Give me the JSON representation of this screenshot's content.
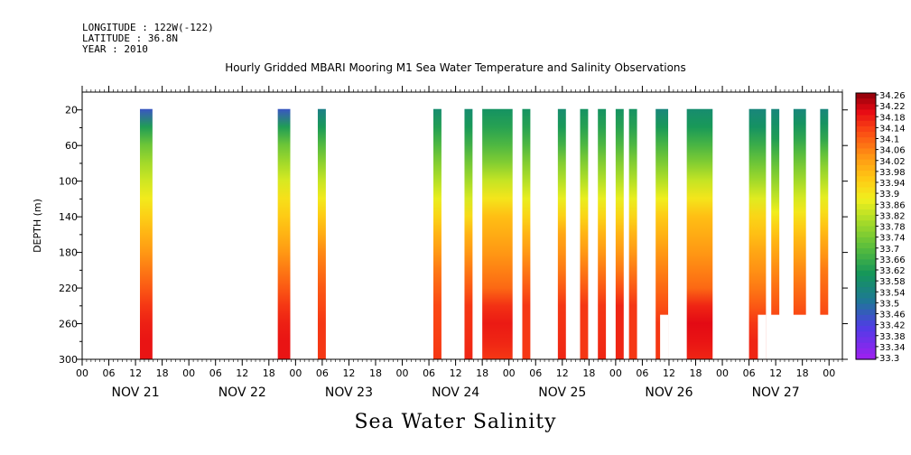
{
  "header": {
    "longitude": "LONGITUDE : 122W(-122)",
    "latitude": "LATITUDE : 36.8N",
    "year": "YEAR : 2010",
    "title": "Hourly Gridded MBARI Mooring M1 Sea Water Temperature and Salinity Observations",
    "footer": "Sea Water Salinity"
  },
  "chart_data": {
    "type": "heatmap",
    "title": "Hourly Gridded MBARI Mooring M1 Sea Water Temperature and Salinity Observations",
    "subtitle": "Sea Water Salinity",
    "ylabel": "DEPTH (m)",
    "xlabel": "",
    "y_axis": {
      "range": [
        300,
        0
      ],
      "inverted": true,
      "ticks": [
        20,
        60,
        100,
        140,
        180,
        220,
        260,
        300
      ]
    },
    "x_axis": {
      "range_hours": [
        0,
        171
      ],
      "hour_ticks": [
        "00",
        "06",
        "12",
        "18",
        "00",
        "06",
        "12",
        "18",
        "00",
        "06",
        "12",
        "18",
        "00",
        "06",
        "12",
        "18",
        "00",
        "06",
        "12",
        "18",
        "00",
        "06",
        "12",
        "18",
        "00",
        "06",
        "12",
        "18",
        "00"
      ],
      "day_labels": [
        "NOV 21",
        "NOV 22",
        "NOV 23",
        "NOV 24",
        "NOV 25",
        "NOV 26",
        "NOV 27"
      ]
    },
    "colorbar": {
      "labels": [
        "34.26",
        "34.22",
        "34.18",
        "34.14",
        "34.1",
        "34.06",
        "34.02",
        "33.98",
        "33.94",
        "33.9",
        "33.86",
        "33.82",
        "33.78",
        "33.74",
        "33.7",
        "33.66",
        "33.62",
        "33.58",
        "33.54",
        "33.5",
        "33.46",
        "33.42",
        "33.38",
        "33.34",
        "33.3"
      ],
      "min": 33.3,
      "max": 34.28
    },
    "observations": [
      {
        "start_hour": 13,
        "end_hour": 15,
        "max_depth": 300,
        "profile": [
          [
            20,
            33.46
          ],
          [
            30,
            33.56
          ],
          [
            50,
            33.7
          ],
          [
            80,
            33.8
          ],
          [
            120,
            33.9
          ],
          [
            160,
            34.0
          ],
          [
            200,
            34.08
          ],
          [
            240,
            34.16
          ],
          [
            270,
            34.2
          ],
          [
            300,
            34.2
          ]
        ]
      },
      {
        "start_hour": 44,
        "end_hour": 46,
        "max_depth": 300,
        "profile": [
          [
            20,
            33.46
          ],
          [
            30,
            33.56
          ],
          [
            50,
            33.7
          ],
          [
            80,
            33.8
          ],
          [
            120,
            33.92
          ],
          [
            160,
            34.0
          ],
          [
            200,
            34.08
          ],
          [
            240,
            34.16
          ],
          [
            270,
            34.2
          ],
          [
            300,
            34.2
          ]
        ]
      },
      {
        "start_hour": 53,
        "end_hour": 54,
        "max_depth": 300,
        "profile": [
          [
            20,
            33.54
          ],
          [
            40,
            33.62
          ],
          [
            70,
            33.74
          ],
          [
            100,
            33.84
          ],
          [
            140,
            33.96
          ],
          [
            180,
            34.06
          ],
          [
            220,
            34.12
          ],
          [
            260,
            34.16
          ],
          [
            300,
            34.16
          ]
        ]
      },
      {
        "start_hour": 79,
        "end_hour": 80,
        "max_depth": 300,
        "profile": [
          [
            20,
            33.58
          ],
          [
            50,
            33.66
          ],
          [
            80,
            33.76
          ],
          [
            120,
            33.88
          ],
          [
            160,
            34.0
          ],
          [
            200,
            34.08
          ],
          [
            240,
            34.14
          ],
          [
            300,
            34.16
          ]
        ]
      },
      {
        "start_hour": 86,
        "end_hour": 87,
        "max_depth": 300,
        "profile": [
          [
            20,
            33.58
          ],
          [
            50,
            33.64
          ],
          [
            80,
            33.74
          ],
          [
            120,
            33.86
          ],
          [
            160,
            34.0
          ],
          [
            200,
            34.08
          ],
          [
            240,
            34.16
          ],
          [
            300,
            34.18
          ]
        ]
      },
      {
        "start_hour": 90,
        "end_hour": 96,
        "max_depth": 300,
        "profile": [
          [
            20,
            33.6
          ],
          [
            40,
            33.64
          ],
          [
            70,
            33.72
          ],
          [
            100,
            33.84
          ],
          [
            140,
            33.98
          ],
          [
            180,
            34.04
          ],
          [
            220,
            34.1
          ],
          [
            250,
            34.2
          ],
          [
            280,
            34.18
          ],
          [
            300,
            34.16
          ]
        ]
      },
      {
        "start_hour": 99,
        "end_hour": 100,
        "max_depth": 300,
        "profile": [
          [
            20,
            33.6
          ],
          [
            50,
            33.66
          ],
          [
            80,
            33.76
          ],
          [
            120,
            33.88
          ],
          [
            160,
            34.0
          ],
          [
            200,
            34.08
          ],
          [
            240,
            34.16
          ],
          [
            300,
            34.16
          ]
        ]
      },
      {
        "start_hour": 107,
        "end_hour": 108,
        "max_depth": 300,
        "profile": [
          [
            20,
            33.58
          ],
          [
            50,
            33.64
          ],
          [
            80,
            33.76
          ],
          [
            120,
            33.88
          ],
          [
            160,
            34.02
          ],
          [
            200,
            34.08
          ],
          [
            240,
            34.16
          ],
          [
            300,
            34.18
          ]
        ]
      },
      {
        "start_hour": 112,
        "end_hour": 113,
        "max_depth": 300,
        "profile": [
          [
            20,
            33.6
          ],
          [
            50,
            33.66
          ],
          [
            80,
            33.76
          ],
          [
            120,
            33.88
          ],
          [
            160,
            34.0
          ],
          [
            200,
            34.08
          ],
          [
            240,
            34.16
          ],
          [
            300,
            34.16
          ]
        ]
      },
      {
        "start_hour": 116,
        "end_hour": 117,
        "max_depth": 300,
        "profile": [
          [
            20,
            33.6
          ],
          [
            50,
            33.66
          ],
          [
            80,
            33.76
          ],
          [
            120,
            33.88
          ],
          [
            160,
            34.0
          ],
          [
            200,
            34.08
          ],
          [
            240,
            34.16
          ],
          [
            300,
            34.18
          ]
        ]
      },
      {
        "start_hour": 120,
        "end_hour": 121,
        "max_depth": 300,
        "profile": [
          [
            20,
            33.6
          ],
          [
            50,
            33.66
          ],
          [
            80,
            33.76
          ],
          [
            120,
            33.88
          ],
          [
            160,
            34.0
          ],
          [
            200,
            34.08
          ],
          [
            240,
            34.18
          ],
          [
            300,
            34.18
          ]
        ]
      },
      {
        "start_hour": 123,
        "end_hour": 124,
        "max_depth": 300,
        "profile": [
          [
            20,
            33.6
          ],
          [
            50,
            33.66
          ],
          [
            80,
            33.76
          ],
          [
            120,
            33.88
          ],
          [
            160,
            34.0
          ],
          [
            200,
            34.08
          ],
          [
            240,
            34.16
          ],
          [
            300,
            34.16
          ]
        ]
      },
      {
        "start_hour": 129,
        "end_hour": 131,
        "max_depth": 300,
        "profile": [
          [
            20,
            33.56
          ],
          [
            40,
            33.62
          ],
          [
            70,
            33.72
          ],
          [
            100,
            33.82
          ],
          [
            140,
            33.96
          ],
          [
            180,
            34.04
          ],
          [
            220,
            34.1
          ],
          [
            260,
            34.16
          ],
          [
            300,
            34.16
          ]
        ],
        "cut_depth": 250,
        "cut_from_hour": 130
      },
      {
        "start_hour": 136,
        "end_hour": 141,
        "max_depth": 300,
        "profile": [
          [
            20,
            33.58
          ],
          [
            40,
            33.62
          ],
          [
            70,
            33.72
          ],
          [
            100,
            33.84
          ],
          [
            140,
            33.98
          ],
          [
            180,
            34.04
          ],
          [
            220,
            34.1
          ],
          [
            250,
            34.22
          ],
          [
            280,
            34.2
          ],
          [
            300,
            34.18
          ]
        ]
      },
      {
        "start_hour": 150,
        "end_hour": 153,
        "max_depth": 300,
        "profile": [
          [
            20,
            33.56
          ],
          [
            40,
            33.6
          ],
          [
            70,
            33.7
          ],
          [
            100,
            33.8
          ],
          [
            140,
            33.94
          ],
          [
            180,
            34.02
          ],
          [
            220,
            34.08
          ],
          [
            250,
            34.14
          ],
          [
            270,
            34.18
          ],
          [
            300,
            34.18
          ]
        ],
        "cut_depth": 250,
        "cut_from_hour": 152
      },
      {
        "start_hour": 155,
        "end_hour": 156,
        "max_depth": 250,
        "profile": [
          [
            20,
            33.56
          ],
          [
            50,
            33.62
          ],
          [
            80,
            33.72
          ],
          [
            120,
            33.84
          ],
          [
            160,
            33.98
          ],
          [
            200,
            34.06
          ],
          [
            250,
            34.14
          ]
        ]
      },
      {
        "start_hour": 160,
        "end_hour": 162,
        "max_depth": 250,
        "profile": [
          [
            20,
            33.56
          ],
          [
            50,
            33.64
          ],
          [
            80,
            33.74
          ],
          [
            120,
            33.86
          ],
          [
            160,
            33.98
          ],
          [
            200,
            34.06
          ],
          [
            250,
            34.14
          ]
        ]
      },
      {
        "start_hour": 166,
        "end_hour": 167,
        "max_depth": 250,
        "profile": [
          [
            20,
            33.56
          ],
          [
            50,
            33.64
          ],
          [
            80,
            33.76
          ],
          [
            120,
            33.88
          ],
          [
            160,
            34.0
          ],
          [
            200,
            34.08
          ],
          [
            250,
            34.14
          ]
        ]
      }
    ]
  }
}
